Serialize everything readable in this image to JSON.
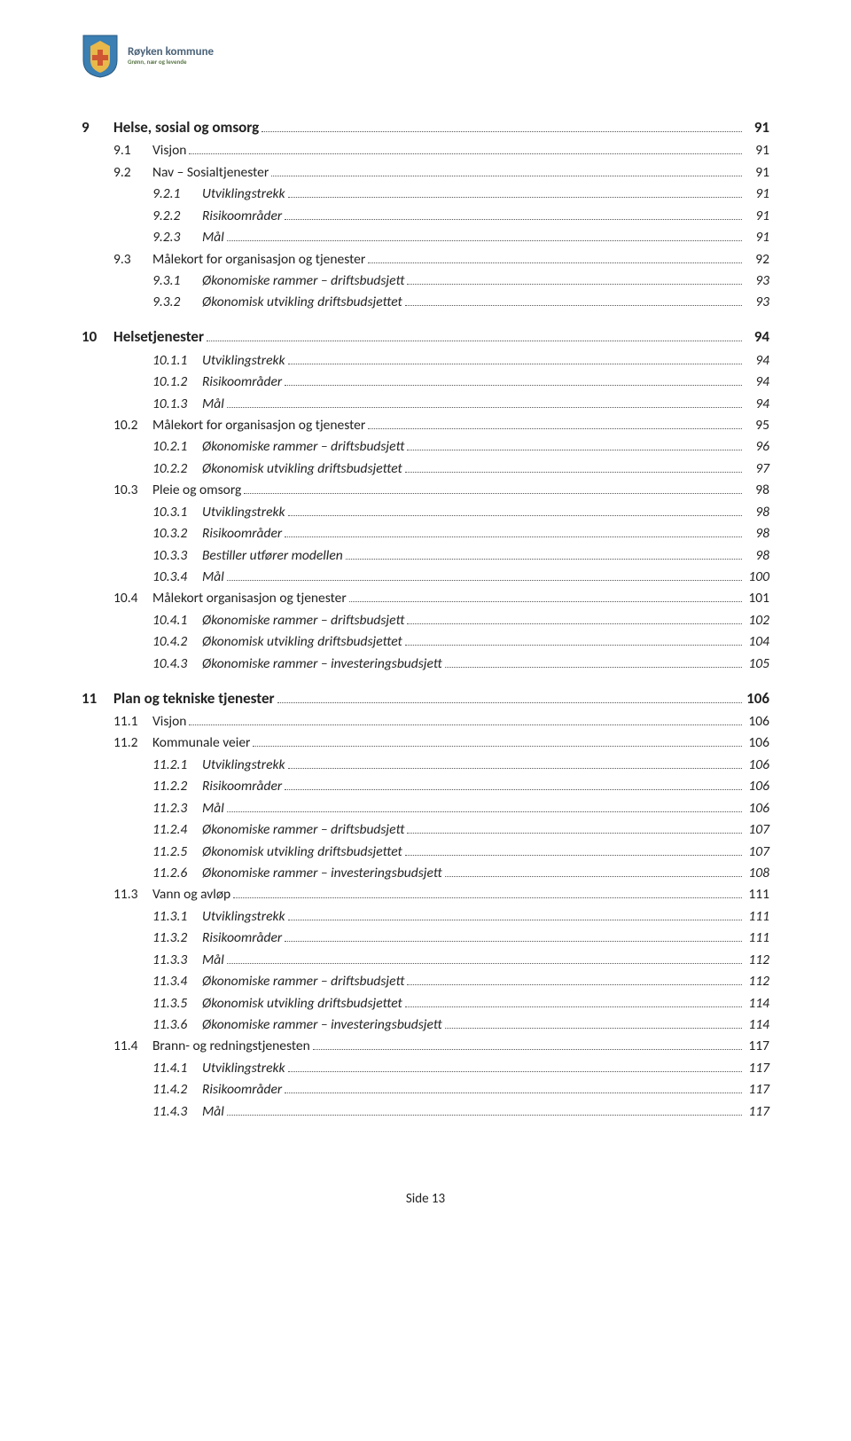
{
  "header": {
    "org_name": "Røyken kommune",
    "tagline": "Grønn, nær og levende"
  },
  "footer": "Side 13",
  "toc": [
    {
      "level": 1,
      "num": "9",
      "title": "Helse, sosial og omsorg",
      "page": "91"
    },
    {
      "level": 2,
      "num": "9.1",
      "title": "Visjon",
      "page": "91"
    },
    {
      "level": 2,
      "num": "9.2",
      "title": "Nav – Sosialtjenester",
      "page": "91"
    },
    {
      "level": 3,
      "num": "9.2.1",
      "title": "Utviklingstrekk",
      "page": "91"
    },
    {
      "level": 3,
      "num": "9.2.2",
      "title": "Risikoområder",
      "page": "91"
    },
    {
      "level": 3,
      "num": "9.2.3",
      "title": "Mål",
      "page": "91"
    },
    {
      "level": 2,
      "num": "9.3",
      "title": "Målekort for organisasjon og tjenester",
      "page": "92"
    },
    {
      "level": 3,
      "num": "9.3.1",
      "title": "Økonomiske rammer – driftsbudsjett",
      "page": "93"
    },
    {
      "level": 3,
      "num": "9.3.2",
      "title": "Økonomisk utvikling driftsbudsjettet",
      "page": "93"
    },
    {
      "level": 1,
      "num": "10",
      "title": "Helsetjenester",
      "page": "94"
    },
    {
      "level": 3,
      "num": "10.1.1",
      "title": "Utviklingstrekk",
      "page": "94"
    },
    {
      "level": 3,
      "num": "10.1.2",
      "title": "Risikoområder",
      "page": "94"
    },
    {
      "level": 3,
      "num": "10.1.3",
      "title": "Mål",
      "page": "94"
    },
    {
      "level": 2,
      "num": "10.2",
      "title": "Målekort for organisasjon og tjenester",
      "page": "95"
    },
    {
      "level": 3,
      "num": "10.2.1",
      "title": "Økonomiske rammer – driftsbudsjett",
      "page": "96"
    },
    {
      "level": 3,
      "num": "10.2.2",
      "title": "Økonomisk utvikling driftsbudsjettet",
      "page": "97"
    },
    {
      "level": 2,
      "num": "10.3",
      "title": "Pleie og omsorg",
      "page": "98"
    },
    {
      "level": 3,
      "num": "10.3.1",
      "title": "Utviklingstrekk",
      "page": "98"
    },
    {
      "level": 3,
      "num": "10.3.2",
      "title": "Risikoområder",
      "page": "98"
    },
    {
      "level": 3,
      "num": "10.3.3",
      "title": "Bestiller utfører modellen",
      "page": "98"
    },
    {
      "level": 3,
      "num": "10.3.4",
      "title": "Mål",
      "page": "100"
    },
    {
      "level": 2,
      "num": "10.4",
      "title": "Målekort organisasjon og tjenester",
      "page": "101"
    },
    {
      "level": 3,
      "num": "10.4.1",
      "title": "Økonomiske rammer – driftsbudsjett",
      "page": "102"
    },
    {
      "level": 3,
      "num": "10.4.2",
      "title": "Økonomisk utvikling driftsbudsjettet",
      "page": "104"
    },
    {
      "level": 3,
      "num": "10.4.3",
      "title": "Økonomiske rammer – investeringsbudsjett",
      "page": "105"
    },
    {
      "level": 1,
      "num": "11",
      "title": "Plan og tekniske tjenester",
      "page": "106"
    },
    {
      "level": 2,
      "num": "11.1",
      "title": "Visjon",
      "page": "106"
    },
    {
      "level": 2,
      "num": "11.2",
      "title": "Kommunale veier",
      "page": "106"
    },
    {
      "level": 3,
      "num": "11.2.1",
      "title": "Utviklingstrekk",
      "page": "106"
    },
    {
      "level": 3,
      "num": "11.2.2",
      "title": "Risikoområder",
      "page": "106"
    },
    {
      "level": 3,
      "num": "11.2.3",
      "title": "Mål",
      "page": "106"
    },
    {
      "level": 3,
      "num": "11.2.4",
      "title": "Økonomiske rammer – driftsbudsjett",
      "page": "107"
    },
    {
      "level": 3,
      "num": "11.2.5",
      "title": "Økonomisk utvikling driftsbudsjettet",
      "page": "107"
    },
    {
      "level": 3,
      "num": "11.2.6",
      "title": "Økonomiske rammer – investeringsbudsjett",
      "page": "108"
    },
    {
      "level": 2,
      "num": "11.3",
      "title": "Vann og avløp",
      "page": "111"
    },
    {
      "level": 3,
      "num": "11.3.1",
      "title": "Utviklingstrekk",
      "page": "111"
    },
    {
      "level": 3,
      "num": "11.3.2",
      "title": "Risikoområder",
      "page": "111"
    },
    {
      "level": 3,
      "num": "11.3.3",
      "title": "Mål",
      "page": "112"
    },
    {
      "level": 3,
      "num": "11.3.4",
      "title": "Økonomiske rammer – driftsbudsjett",
      "page": "112"
    },
    {
      "level": 3,
      "num": "11.3.5",
      "title": "Økonomisk utvikling driftsbudsjettet",
      "page": "114"
    },
    {
      "level": 3,
      "num": "11.3.6",
      "title": "Økonomiske rammer – investeringsbudsjett",
      "page": "114"
    },
    {
      "level": 2,
      "num": "11.4",
      "title": "Brann- og redningstjenesten",
      "page": "117"
    },
    {
      "level": 3,
      "num": "11.4.1",
      "title": "Utviklingstrekk",
      "page": "117"
    },
    {
      "level": 3,
      "num": "11.4.2",
      "title": "Risikoområder",
      "page": "117"
    },
    {
      "level": 3,
      "num": "11.4.3",
      "title": "Mål",
      "page": "117"
    }
  ]
}
